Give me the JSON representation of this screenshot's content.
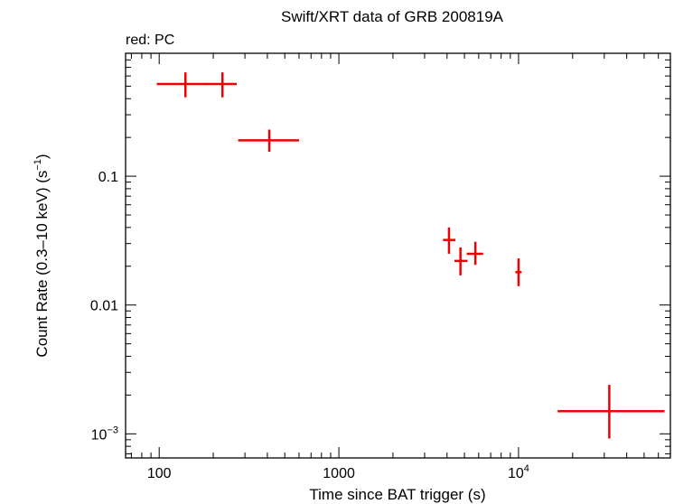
{
  "chart_data": {
    "type": "scatter",
    "title": "Swift/XRT data of GRB 200819A",
    "subtitle": "red: PC",
    "xlabel": "Time since BAT trigger (s)",
    "ylabel_main": "Count Rate (0.3–10 keV) (s",
    "ylabel_sup": "−1",
    "ylabel_end": ")",
    "xscale": "log",
    "yscale": "log",
    "xlim": [
      65,
      70000
    ],
    "ylim": [
      0.00065,
      0.9
    ],
    "x_ticks": [
      {
        "value": 100,
        "label": "100",
        "sup": ""
      },
      {
        "value": 1000,
        "label": "1000",
        "sup": ""
      },
      {
        "value": 10000,
        "label": "10",
        "sup": "4"
      }
    ],
    "y_ticks": [
      {
        "value": 0.1,
        "label": "0.1",
        "sup": ""
      },
      {
        "value": 0.01,
        "label": "0.01",
        "sup": ""
      },
      {
        "value": 0.001,
        "label": "10",
        "sup": "−3"
      }
    ],
    "series": [
      {
        "color": "#ee0000",
        "points": [
          {
            "x": 140,
            "xlo": 97,
            "xhi": 183,
            "y": 0.52,
            "ylo": 0.41,
            "yhi": 0.64
          },
          {
            "x": 225,
            "xlo": 181,
            "xhi": 270,
            "y": 0.52,
            "ylo": 0.41,
            "yhi": 0.64
          },
          {
            "x": 410,
            "xlo": 275,
            "xhi": 600,
            "y": 0.19,
            "ylo": 0.155,
            "yhi": 0.23
          },
          {
            "x": 4100,
            "xlo": 3800,
            "xhi": 4450,
            "y": 0.032,
            "ylo": 0.025,
            "yhi": 0.04
          },
          {
            "x": 4750,
            "xlo": 4400,
            "xhi": 5200,
            "y": 0.022,
            "ylo": 0.017,
            "yhi": 0.028
          },
          {
            "x": 5750,
            "xlo": 5150,
            "xhi": 6350,
            "y": 0.025,
            "ylo": 0.0205,
            "yhi": 0.031
          },
          {
            "x": 10000,
            "xlo": 9600,
            "xhi": 10400,
            "y": 0.018,
            "ylo": 0.014,
            "yhi": 0.023
          },
          {
            "x": 32000,
            "xlo": 16500,
            "xhi": 65000,
            "y": 0.0015,
            "ylo": 0.00092,
            "yhi": 0.0024
          }
        ]
      }
    ]
  }
}
